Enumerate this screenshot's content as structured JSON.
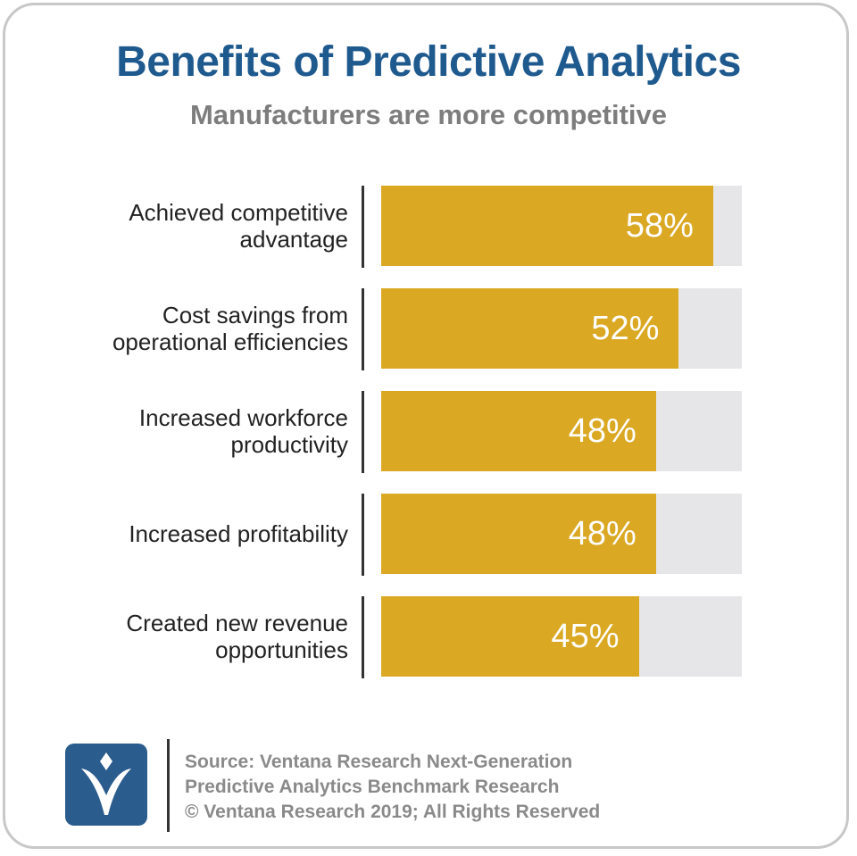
{
  "title": "Benefits of Predictive Analytics",
  "subtitle": "Manufacturers are more competitive",
  "colors": {
    "title": "#1f5a8f",
    "subtitle": "#7d7d7d",
    "bar": "#daa822",
    "track": "#e6e6e8",
    "bar_label": "#ffffff",
    "logo": "#2b5c8e",
    "frame": "#c8c8c8"
  },
  "chart_data": {
    "type": "bar",
    "orientation": "horizontal",
    "categories": [
      [
        "Achieved competitive",
        "advantage"
      ],
      [
        "Cost savings from",
        "operational efficiencies"
      ],
      [
        "Increased workforce",
        "productivity"
      ],
      [
        "Increased profitability"
      ],
      [
        "Created new revenue",
        "opportunities"
      ]
    ],
    "values": [
      58,
      52,
      48,
      48,
      45
    ],
    "value_labels": [
      "58%",
      "52%",
      "48%",
      "48%",
      "45%"
    ],
    "xlim": [
      0,
      100
    ],
    "grid": false
  },
  "footer": {
    "logo_icon": "ventana-logo-icon",
    "source_lines": [
      "Source: Ventana Research Next-Generation",
      "Predictive Analytics Benchmark Research",
      "© Ventana Research 2019; All Rights Reserved"
    ]
  }
}
